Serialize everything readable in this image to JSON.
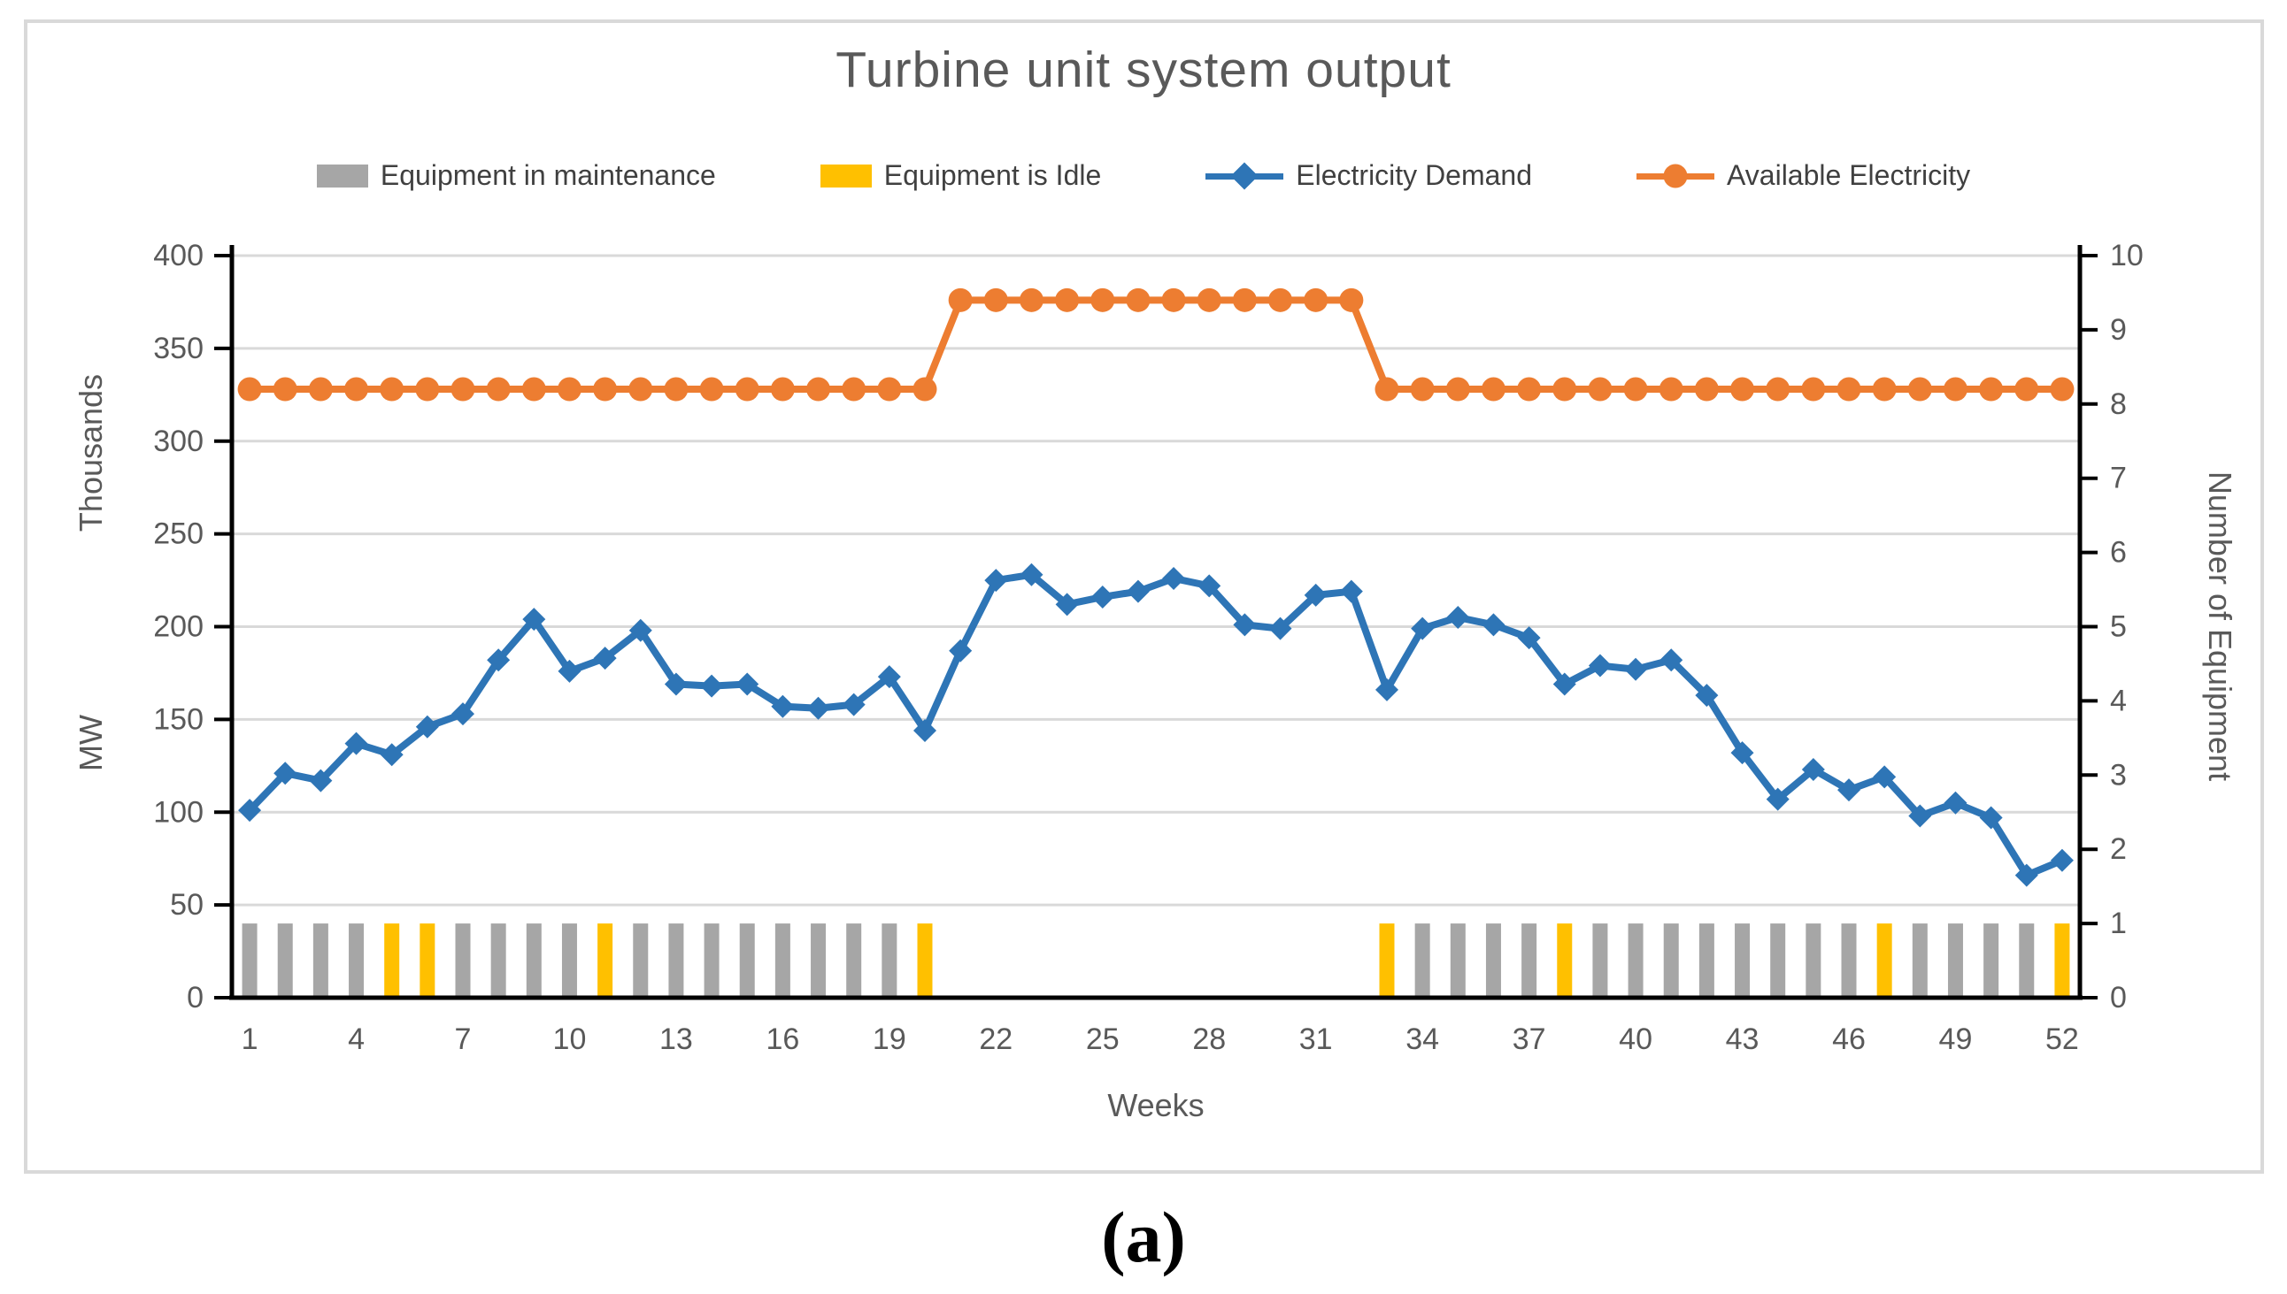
{
  "figure": {
    "caption": "(a)"
  },
  "chart": {
    "title": "Turbine unit system output",
    "legend": [
      {
        "label": "Equipment in maintenance",
        "marker": "rect",
        "color_key": "gray"
      },
      {
        "label": "Equipment is Idle",
        "marker": "rect",
        "color_key": "yellow"
      },
      {
        "label": "Electricity Demand",
        "marker": "diamond",
        "color_key": "blue"
      },
      {
        "label": "Available Electricity",
        "marker": "circle",
        "color_key": "orange"
      }
    ],
    "colors": {
      "gray": "#A6A6A6",
      "yellow": "#FFC000",
      "blue": "#2E75B6",
      "orange": "#ED7D31",
      "grid": "#D9D9D9",
      "axis": "#000000",
      "tick_text": "#595959",
      "panel_border": "#D9D9D9"
    }
  },
  "chart_data": {
    "type": "combo",
    "x": [
      1,
      2,
      3,
      4,
      5,
      6,
      7,
      8,
      9,
      10,
      11,
      12,
      13,
      14,
      15,
      16,
      17,
      18,
      19,
      20,
      21,
      22,
      23,
      24,
      25,
      26,
      27,
      28,
      29,
      30,
      31,
      32,
      33,
      34,
      35,
      36,
      37,
      38,
      39,
      40,
      41,
      42,
      43,
      44,
      45,
      46,
      47,
      48,
      49,
      50,
      51,
      52
    ],
    "x_tick_labels": [
      1,
      4,
      7,
      10,
      13,
      16,
      19,
      22,
      25,
      28,
      31,
      34,
      37,
      40,
      43,
      46,
      49,
      52
    ],
    "xlabel": "Weeks",
    "y_left": {
      "label": "MW",
      "units_label": "Thousands",
      "min": 0,
      "max": 400,
      "step": 50,
      "tick_labels": [
        0,
        50,
        100,
        150,
        200,
        250,
        300,
        350,
        400
      ]
    },
    "y_right": {
      "label": "Number of Equipment",
      "min": 0,
      "max": 10,
      "step": 1,
      "tick_labels": [
        0,
        1,
        2,
        3,
        4,
        5,
        6,
        7,
        8,
        9,
        10
      ]
    },
    "grid": true,
    "legend_position": "top",
    "series": [
      {
        "name": "Equipment in maintenance",
        "type": "bar",
        "axis": "right",
        "color_key": "gray",
        "values": [
          1,
          1,
          1,
          1,
          0,
          0,
          1,
          1,
          1,
          1,
          0,
          1,
          1,
          1,
          1,
          1,
          1,
          1,
          1,
          0,
          0,
          0,
          0,
          0,
          0,
          0,
          0,
          0,
          0,
          0,
          0,
          0,
          0,
          1,
          1,
          1,
          1,
          0,
          1,
          1,
          1,
          1,
          1,
          1,
          1,
          1,
          0,
          1,
          1,
          1,
          1,
          0
        ]
      },
      {
        "name": "Equipment is Idle",
        "type": "bar",
        "axis": "right",
        "color_key": "yellow",
        "values": [
          0,
          0,
          0,
          0,
          1,
          1,
          0,
          0,
          0,
          0,
          1,
          0,
          0,
          0,
          0,
          0,
          0,
          0,
          0,
          1,
          0,
          0,
          0,
          0,
          0,
          0,
          0,
          0,
          0,
          0,
          0,
          0,
          1,
          0,
          0,
          0,
          0,
          1,
          0,
          0,
          0,
          0,
          0,
          0,
          0,
          0,
          1,
          0,
          0,
          0,
          0,
          1
        ]
      },
      {
        "name": "Electricity Demand",
        "type": "line",
        "marker": "diamond",
        "axis": "left",
        "color_key": "blue",
        "values": [
          101,
          121,
          117,
          137,
          131,
          146,
          153,
          182,
          204,
          176,
          183,
          198,
          169,
          168,
          169,
          157,
          156,
          158,
          173,
          144,
          187,
          225,
          228,
          212,
          216,
          219,
          226,
          222,
          201,
          199,
          217,
          219,
          166,
          199,
          205,
          201,
          194,
          169,
          179,
          177,
          182,
          163,
          132,
          107,
          123,
          112,
          119,
          98,
          105,
          97,
          66,
          74
        ]
      },
      {
        "name": "Available Electricity",
        "type": "line",
        "marker": "circle",
        "axis": "left",
        "color_key": "orange",
        "values": [
          328,
          328,
          328,
          328,
          328,
          328,
          328,
          328,
          328,
          328,
          328,
          328,
          328,
          328,
          328,
          328,
          328,
          328,
          328,
          328,
          376,
          376,
          376,
          376,
          376,
          376,
          376,
          376,
          376,
          376,
          376,
          376,
          328,
          328,
          328,
          328,
          328,
          328,
          328,
          328,
          328,
          328,
          328,
          328,
          328,
          328,
          328,
          328,
          328,
          328,
          328,
          328
        ]
      }
    ]
  }
}
